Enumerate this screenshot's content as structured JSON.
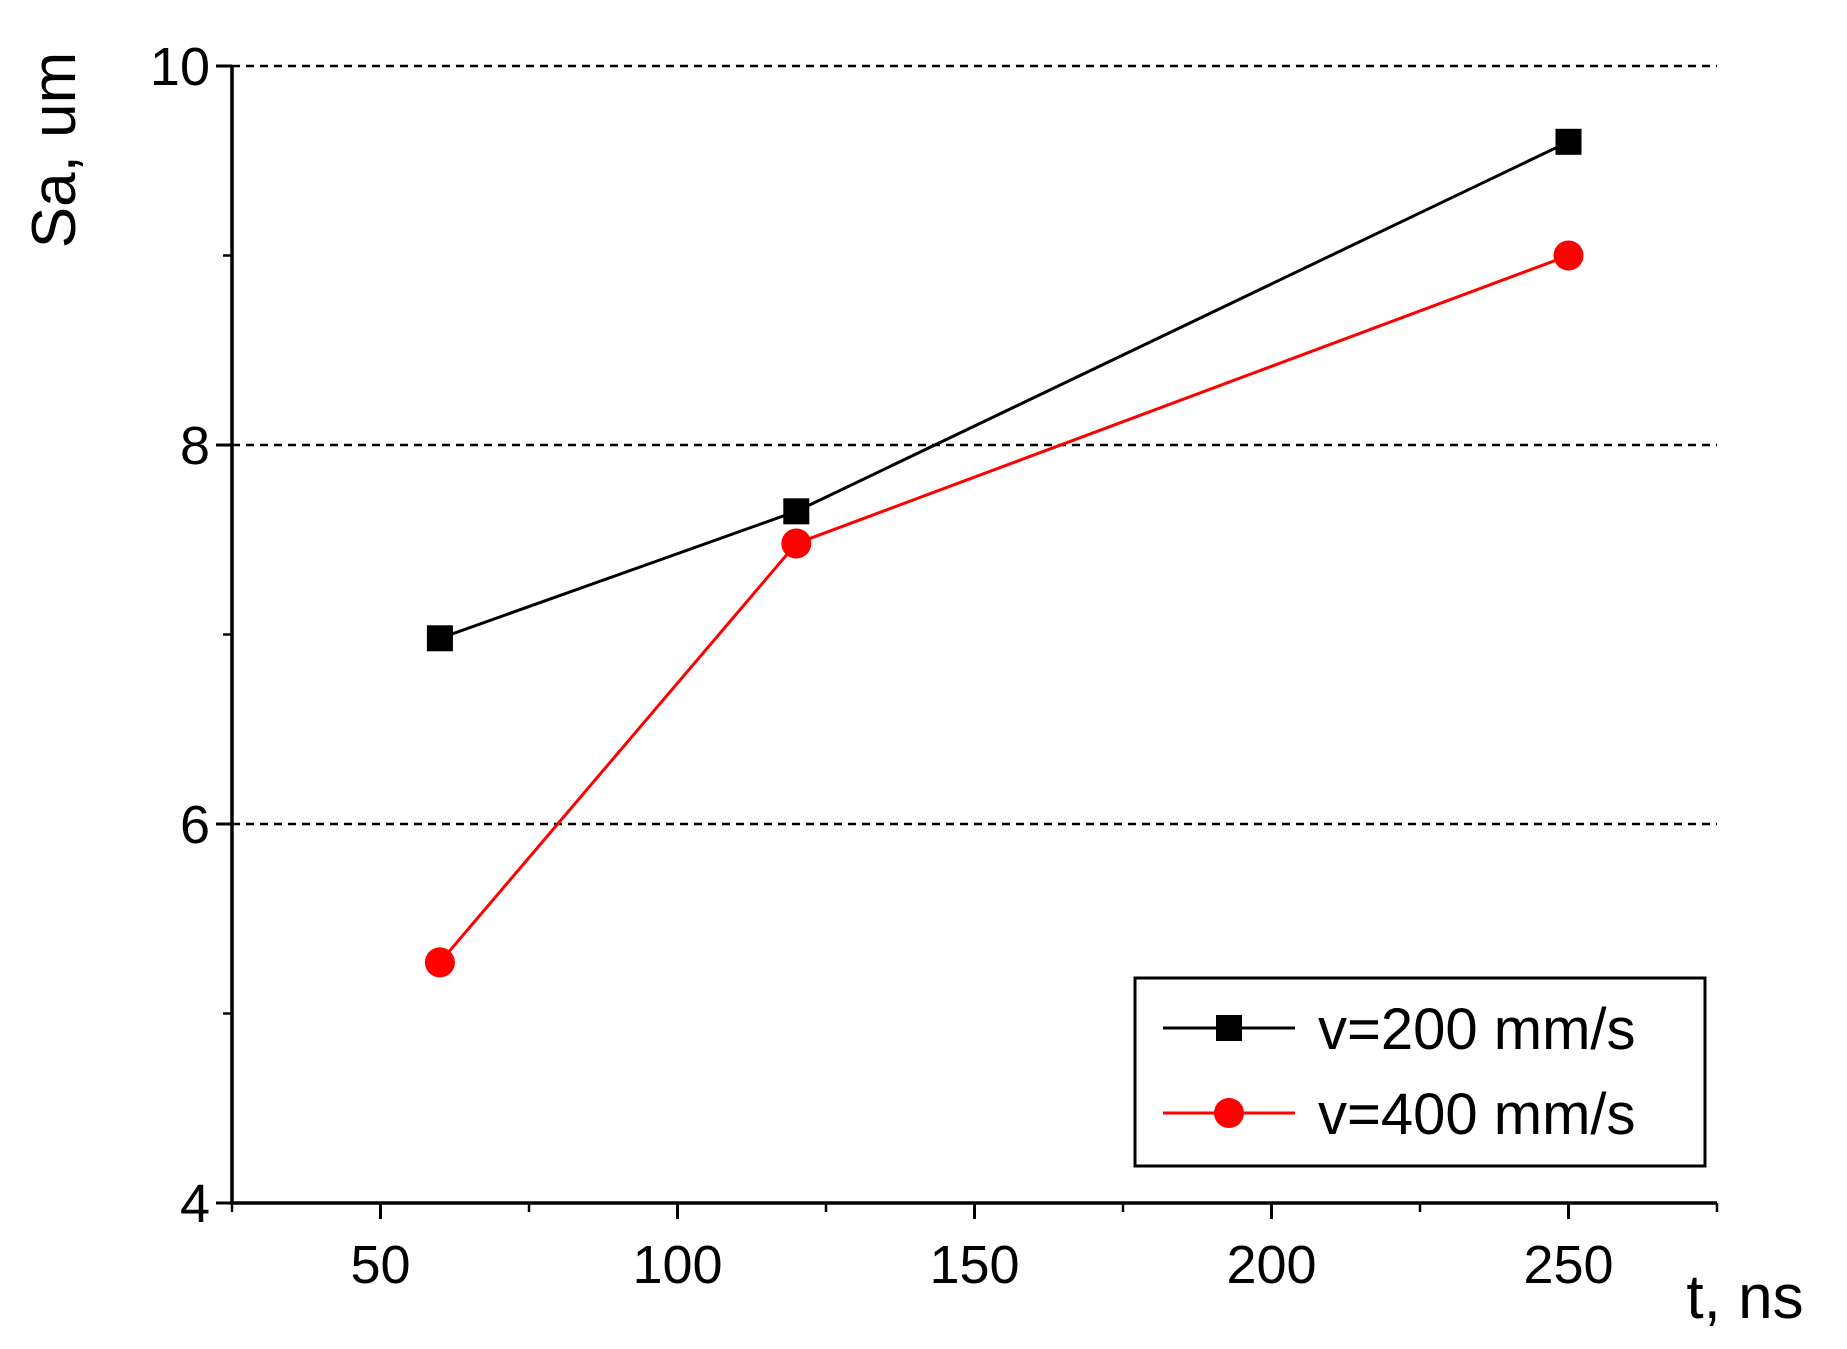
{
  "chart_data": {
    "type": "line",
    "title": "",
    "xlabel": "t, ns",
    "ylabel": "Sa, um",
    "xlim": [
      25,
      275
    ],
    "ylim": [
      4,
      10
    ],
    "xticks": [
      50,
      100,
      150,
      200,
      250
    ],
    "xtick_labels": [
      "50",
      "100",
      "150",
      "200",
      "250"
    ],
    "xminor": [
      25,
      75,
      125,
      175,
      225,
      275
    ],
    "yticks": [
      4,
      6,
      8,
      10
    ],
    "ytick_labels": [
      "4",
      "6",
      "8",
      "10"
    ],
    "yminor": [
      5,
      7,
      9
    ],
    "grid": "horizontal dashed",
    "legend_position": "bottom-right",
    "series": [
      {
        "name": "v=200 mm/s",
        "color": "#000000",
        "marker": "square",
        "x": [
          60,
          120,
          250
        ],
        "y": [
          6.98,
          7.65,
          9.6
        ]
      },
      {
        "name": "v=400 mm/s",
        "color": "#ff0000",
        "marker": "circle",
        "x": [
          60,
          120,
          250
        ],
        "y": [
          5.27,
          7.48,
          9.0
        ]
      }
    ]
  }
}
